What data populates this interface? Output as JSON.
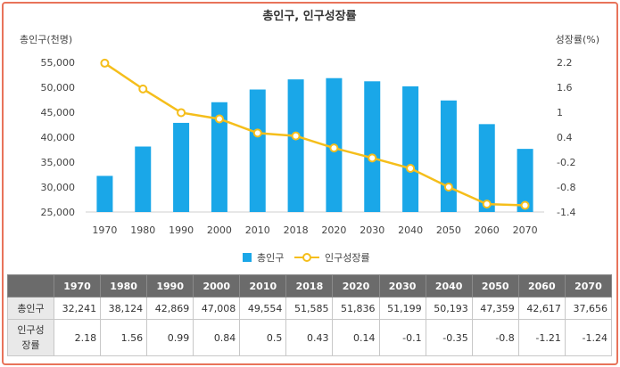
{
  "chart_data": {
    "type": "bar+line",
    "title": "총인구, 인구성장률",
    "categories": [
      "1970",
      "1980",
      "1990",
      "2000",
      "2010",
      "2018",
      "2020",
      "2030",
      "2040",
      "2050",
      "2060",
      "2070"
    ],
    "series": [
      {
        "name": "총인구",
        "type": "bar",
        "axis": "left",
        "color": "#1aa7e8",
        "values": [
          32241,
          38124,
          42869,
          47008,
          49554,
          51585,
          51836,
          51199,
          50193,
          47359,
          42617,
          37656
        ]
      },
      {
        "name": "인구성장률",
        "type": "line",
        "axis": "right",
        "color": "#f5be1b",
        "values": [
          2.18,
          1.56,
          0.99,
          0.84,
          0.5,
          0.43,
          0.14,
          -0.1,
          -0.35,
          -0.8,
          -1.21,
          -1.24
        ]
      }
    ],
    "y_left": {
      "label": "총인구(천명)",
      "ylim": [
        25000,
        55000
      ],
      "ticks": [
        "55,000",
        "50,000",
        "45,000",
        "40,000",
        "35,000",
        "30,000",
        "25,000"
      ],
      "tick_values": [
        55000,
        50000,
        45000,
        40000,
        35000,
        30000,
        25000
      ]
    },
    "y_right": {
      "label": "성장률(%)",
      "ylim": [
        -1.4,
        2.2
      ],
      "ticks": [
        "2.2",
        "1.6",
        "1",
        "0.4",
        "-0.2",
        "-0.8",
        "-1.4"
      ],
      "tick_values": [
        2.2,
        1.6,
        1.0,
        0.4,
        -0.2,
        -0.8,
        -1.4
      ]
    },
    "legend": {
      "position": "bottom",
      "items": [
        "총인구",
        "인구성장률"
      ]
    }
  },
  "table": {
    "headers": [
      "",
      "1970",
      "1980",
      "1990",
      "2000",
      "2010",
      "2018",
      "2020",
      "2030",
      "2040",
      "2050",
      "2060",
      "2070"
    ],
    "rows": [
      {
        "label": "총인구",
        "cells": [
          "32,241",
          "38,124",
          "42,869",
          "47,008",
          "49,554",
          "51,585",
          "51,836",
          "51,199",
          "50,193",
          "47,359",
          "42,617",
          "37,656"
        ]
      },
      {
        "label": "인구성장률",
        "cells": [
          "2.18",
          "1.56",
          "0.99",
          "0.84",
          "0.5",
          "0.43",
          "0.14",
          "-0.1",
          "-0.35",
          "-0.8",
          "-1.21",
          "-1.24"
        ]
      }
    ]
  }
}
